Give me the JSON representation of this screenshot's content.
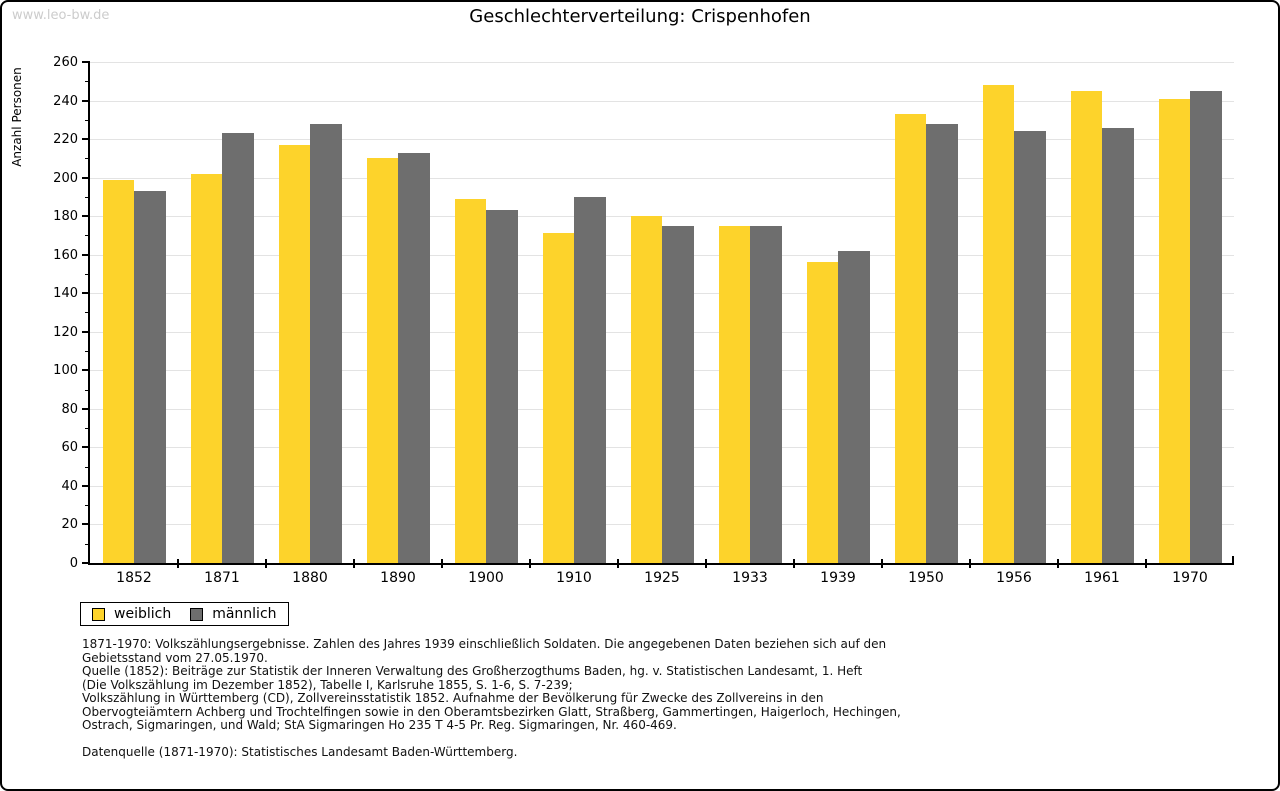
{
  "watermark": "www.leo-bw.de",
  "title": "Geschlechterverteilung: Crispenhofen",
  "chart_data": {
    "type": "bar",
    "title": "Geschlechterverteilung: Crispenhofen",
    "ylabel": "Anzahl Personen",
    "xlabel": "",
    "ylim": [
      0,
      260
    ],
    "ytick_major_step": 20,
    "ytick_minor_step": 10,
    "grid": true,
    "legend_position": "bottom-left",
    "categories": [
      "1852",
      "1871",
      "1880",
      "1890",
      "1900",
      "1910",
      "1925",
      "1933",
      "1939",
      "1950",
      "1956",
      "1961",
      "1970"
    ],
    "series": [
      {
        "name": "weiblich",
        "color": "#fdd32b",
        "values": [
          199,
          202,
          217,
          210,
          189,
          171,
          180,
          175,
          156,
          233,
          248,
          245,
          241
        ]
      },
      {
        "name": "männlich",
        "color": "#6e6e6e",
        "values": [
          193,
          223,
          228,
          213,
          183,
          190,
          175,
          175,
          162,
          228,
          224,
          226,
          245
        ]
      }
    ]
  },
  "footnotes": {
    "block1": [
      "1871-1970: Volkszählungsergebnisse. Zahlen des Jahres 1939 einschließlich Soldaten. Die angegebenen Daten beziehen sich auf den",
      "Gebietsstand vom 27.05.1970.",
      "Quelle (1852): Beiträge zur Statistik der Inneren Verwaltung des Großherzogthums Baden, hg. v. Statistischen Landesamt, 1. Heft",
      "(Die Volkszählung im Dezember 1852), Tabelle I, Karlsruhe 1855, S. 1-6, S. 7-239;",
      "Volkszählung in Württemberg (CD), Zollvereinsstatistik 1852. Aufnahme der Bevölkerung für Zwecke des Zollvereins in den",
      "Obervogteiämtern Achberg und Trochtelfingen sowie in den Oberamtsbezirken Glatt, Straßberg, Gammertingen, Haigerloch, Hechingen,",
      "Ostrach, Sigmaringen, und Wald; StA Sigmaringen Ho 235 T 4-5 Pr. Reg. Sigmaringen, Nr. 460-469."
    ],
    "block2": [
      "Datenquelle (1871-1970): Statistisches Landesamt Baden-Württemberg."
    ]
  },
  "colors": {
    "female_bar": "#fdd32b",
    "male_bar": "#6e6e6e",
    "gridline": "#e3e3e3",
    "axis": "#000000",
    "watermark": "#cccccc"
  }
}
